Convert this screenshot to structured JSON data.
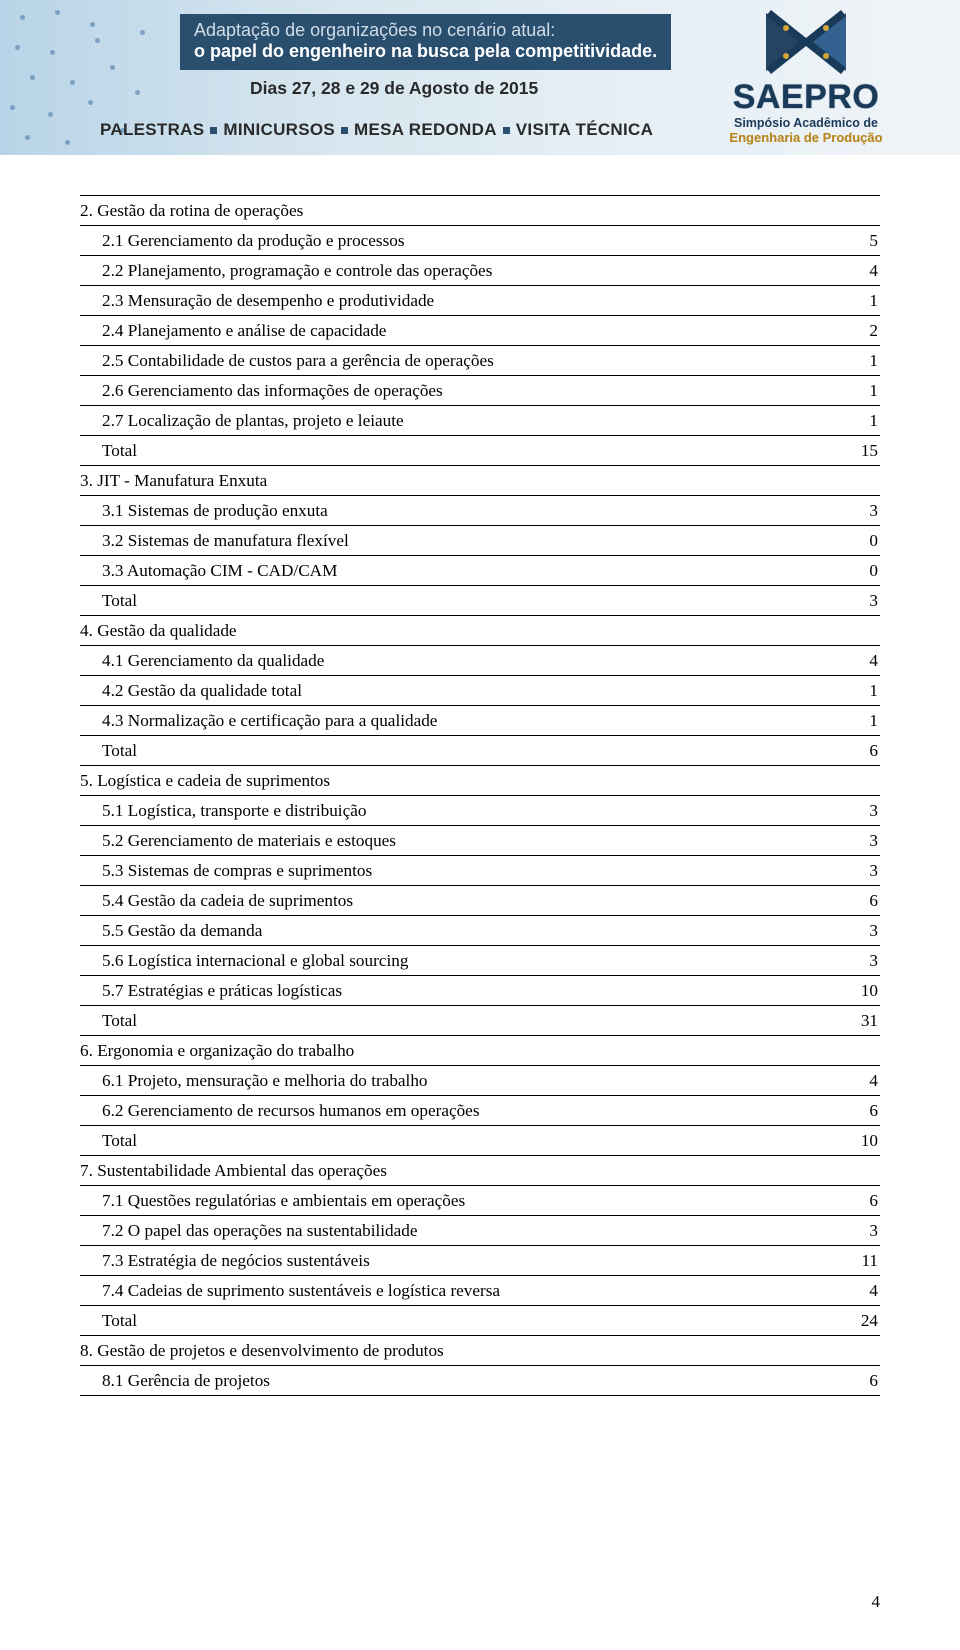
{
  "banner": {
    "title_line1": "Adaptação de organizações no cenário atual:",
    "title_line2": "o papel do engenheiro na busca pela competitividade.",
    "dates": "Dias 27, 28 e 29 de Agosto de 2015",
    "tags": [
      "PALESTRAS",
      "MINICURSOS",
      "MESA REDONDA",
      "VISITA TÉCNICA"
    ],
    "logo_main": "SAEPRO",
    "logo_sub1": "Simpósio Acadêmico de",
    "logo_sub2": "Engenharia de Produção",
    "colors": {
      "banner_gradient_start": "#b8d4e8",
      "banner_gradient_end": "#f0f4f8",
      "box_bg": "#2a4f6e",
      "box_text": "#ffffff",
      "logo_blue": "#1a3a5a",
      "logo_gold": "#b88820"
    }
  },
  "table": {
    "font_family": "Times New Roman",
    "font_size_pt": 12,
    "border_color": "#000000",
    "rows": [
      {
        "label": "2. Gestão da rotina de operações",
        "value": "",
        "type": "header"
      },
      {
        "label": "2.1 Gerenciamento da produção e processos",
        "value": "5",
        "type": "sub"
      },
      {
        "label": "2.2 Planejamento, programação e controle das operações",
        "value": "4",
        "type": "sub"
      },
      {
        "label": "2.3 Mensuração de desempenho e produtividade",
        "value": "1",
        "type": "sub"
      },
      {
        "label": "2.4 Planejamento e análise de capacidade",
        "value": "2",
        "type": "sub"
      },
      {
        "label": "2.5 Contabilidade de custos para a gerência de operações",
        "value": "1",
        "type": "sub"
      },
      {
        "label": "2.6 Gerenciamento das informações de operações",
        "value": "1",
        "type": "sub"
      },
      {
        "label": "2.7 Localização de plantas, projeto e leiaute",
        "value": "1",
        "type": "sub"
      },
      {
        "label": "Total",
        "value": "15",
        "type": "sub"
      },
      {
        "label": "3. JIT - Manufatura Enxuta",
        "value": "",
        "type": "header"
      },
      {
        "label": "3.1 Sistemas de produção enxuta",
        "value": "3",
        "type": "sub"
      },
      {
        "label": "3.2 Sistemas de manufatura flexível",
        "value": "0",
        "type": "sub"
      },
      {
        "label": "3.3 Automação CIM - CAD/CAM",
        "value": "0",
        "type": "sub"
      },
      {
        "label": "Total",
        "value": "3",
        "type": "sub"
      },
      {
        "label": "4. Gestão da qualidade",
        "value": "",
        "type": "header"
      },
      {
        "label": "4.1 Gerenciamento da qualidade",
        "value": "4",
        "type": "sub"
      },
      {
        "label": "4.2 Gestão da qualidade total",
        "value": "1",
        "type": "sub"
      },
      {
        "label": "4.3 Normalização e certificação para a qualidade",
        "value": "1",
        "type": "sub"
      },
      {
        "label": "Total",
        "value": "6",
        "type": "sub"
      },
      {
        "label": "5. Logística e cadeia de suprimentos",
        "value": "",
        "type": "header"
      },
      {
        "label": "5.1 Logística, transporte e distribuição",
        "value": "3",
        "type": "sub"
      },
      {
        "label": "5.2 Gerenciamento de materiais e estoques",
        "value": "3",
        "type": "sub"
      },
      {
        "label": "5.3 Sistemas de compras e suprimentos",
        "value": "3",
        "type": "sub"
      },
      {
        "label": "5.4 Gestão da cadeia de suprimentos",
        "value": "6",
        "type": "sub"
      },
      {
        "label": "5.5 Gestão da demanda",
        "value": "3",
        "type": "sub"
      },
      {
        "label": "5.6 Logística internacional e global sourcing",
        "value": "3",
        "type": "sub"
      },
      {
        "label": "5.7 Estratégias e práticas logísticas",
        "value": "10",
        "type": "sub"
      },
      {
        "label": "Total",
        "value": "31",
        "type": "sub"
      },
      {
        "label": "6. Ergonomia e organização do trabalho",
        "value": "",
        "type": "header"
      },
      {
        "label": "6.1 Projeto, mensuração e melhoria do trabalho",
        "value": "4",
        "type": "sub"
      },
      {
        "label": "6.2 Gerenciamento de recursos humanos em operações",
        "value": "6",
        "type": "sub"
      },
      {
        "label": "Total",
        "value": "10",
        "type": "sub"
      },
      {
        "label": "7. Sustentabilidade Ambiental das operações",
        "value": "",
        "type": "header"
      },
      {
        "label": "7.1 Questões regulatórias e ambientais em operações",
        "value": "6",
        "type": "sub"
      },
      {
        "label": "7.2 O papel das operações na sustentabilidade",
        "value": "3",
        "type": "sub"
      },
      {
        "label": "7.3 Estratégia de negócios sustentáveis",
        "value": "11",
        "type": "sub"
      },
      {
        "label": "7.4 Cadeias de suprimento sustentáveis e logística reversa",
        "value": "4",
        "type": "sub"
      },
      {
        "label": "Total",
        "value": "24",
        "type": "sub"
      },
      {
        "label": "8. Gestão de projetos e desenvolvimento de produtos",
        "value": "",
        "type": "header"
      },
      {
        "label": "8.1 Gerência de projetos",
        "value": "6",
        "type": "sub"
      }
    ]
  },
  "page_number": "4"
}
